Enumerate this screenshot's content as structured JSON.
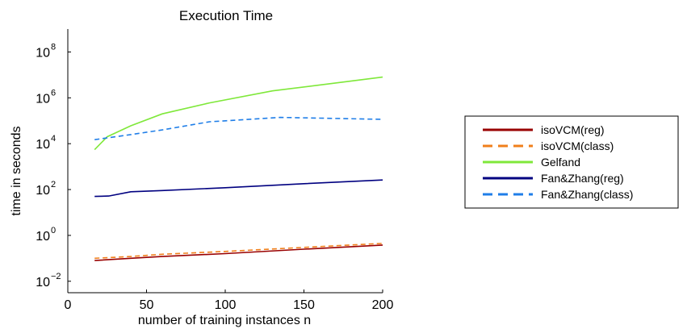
{
  "chart_data": {
    "type": "line",
    "title": "Execution Time",
    "xlabel": "number of training instances n",
    "ylabel": "time in seconds",
    "xlim": [
      0,
      200
    ],
    "ylim_exp": [
      -2.5,
      9
    ],
    "yscale": "log",
    "grid": false,
    "legend_position": "right",
    "x_ticks": [
      {
        "value": 0,
        "label": "0"
      },
      {
        "value": 50,
        "label": "50"
      },
      {
        "value": 100,
        "label": "100"
      },
      {
        "value": 150,
        "label": "150"
      },
      {
        "value": 200,
        "label": "200"
      }
    ],
    "y_ticks": [
      {
        "exp": -2,
        "base": "10",
        "sup": "−2"
      },
      {
        "exp": 0,
        "base": "10",
        "sup": "0"
      },
      {
        "exp": 2,
        "base": "10",
        "sup": "2"
      },
      {
        "exp": 4,
        "base": "10",
        "sup": "4"
      },
      {
        "exp": 6,
        "base": "10",
        "sup": "6"
      },
      {
        "exp": 8,
        "base": "10",
        "sup": "8"
      }
    ],
    "series": [
      {
        "name": "isoVCM(reg)",
        "color": "#990000",
        "dash": false,
        "points": [
          [
            17,
            0.08
          ],
          [
            40,
            0.1
          ],
          [
            60,
            0.12
          ],
          [
            100,
            0.16
          ],
          [
            150,
            0.25
          ],
          [
            200,
            0.38
          ]
        ]
      },
      {
        "name": "isoVCM(class)",
        "color": "#f07f1b",
        "dash": true,
        "points": [
          [
            17,
            0.1
          ],
          [
            40,
            0.12
          ],
          [
            60,
            0.15
          ],
          [
            100,
            0.2
          ],
          [
            150,
            0.3
          ],
          [
            200,
            0.45
          ]
        ]
      },
      {
        "name": "Gelfand",
        "color": "#7fe83a",
        "dash": false,
        "points": [
          [
            17,
            5500
          ],
          [
            25,
            20000
          ],
          [
            40,
            60000
          ],
          [
            60,
            200000
          ],
          [
            90,
            600000
          ],
          [
            130,
            2000000
          ],
          [
            165,
            4000000
          ],
          [
            200,
            8000000
          ]
        ]
      },
      {
        "name": "Fan&Zhang(reg)",
        "color": "#000080",
        "dash": false,
        "points": [
          [
            17,
            50
          ],
          [
            26,
            52
          ],
          [
            40,
            80
          ],
          [
            60,
            90
          ],
          [
            100,
            120
          ],
          [
            150,
            180
          ],
          [
            200,
            260
          ]
        ]
      },
      {
        "name": "Fan&Zhang(class)",
        "color": "#1f7ee8",
        "dash": true,
        "points": [
          [
            17,
            15000
          ],
          [
            40,
            25000
          ],
          [
            60,
            40000
          ],
          [
            90,
            90000
          ],
          [
            135,
            140000
          ],
          [
            160,
            130000
          ],
          [
            200,
            115000
          ]
        ]
      }
    ]
  }
}
